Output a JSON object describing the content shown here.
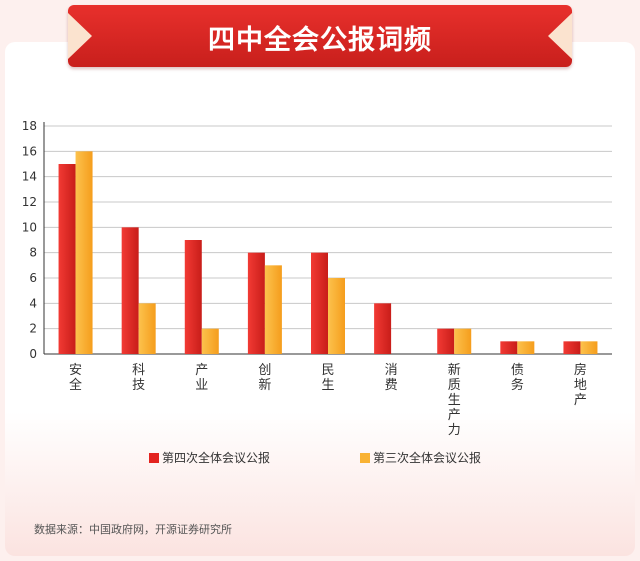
{
  "title": "四中全会公报词频",
  "source": "数据来源：中国政府网，开源证券研究所",
  "colors": {
    "series1": "#e3231f",
    "series2": "#f9b233",
    "axis": "#333333",
    "grid": "#c8c8c8"
  },
  "chart_data": {
    "type": "bar",
    "categories": [
      "安全",
      "科技",
      "产业",
      "创新",
      "民生",
      "消费",
      "新质生产力",
      "债务",
      "房地产"
    ],
    "series": [
      {
        "name": "第四次全体会议公报",
        "values": [
          15,
          10,
          9,
          8,
          8,
          4,
          2,
          1,
          1
        ]
      },
      {
        "name": "第三次全体会议公报",
        "values": [
          16,
          4,
          2,
          7,
          6,
          0,
          2,
          1,
          1
        ]
      }
    ],
    "y_ticks": [
      "0",
      "2",
      "4",
      "6",
      "8",
      "10",
      "12",
      "14",
      "16",
      "18"
    ],
    "ylim": [
      0,
      18
    ],
    "grid": true,
    "legend_position": "bottom"
  }
}
